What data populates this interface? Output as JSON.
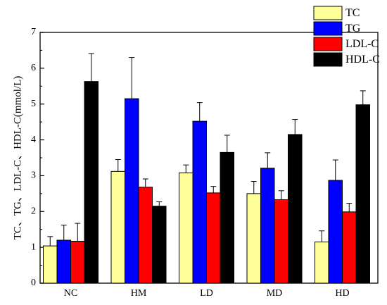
{
  "chart_data": {
    "type": "bar",
    "title": "",
    "xlabel": "",
    "ylabel": "TC、TG、LDL-C、HDL-C(mmol/L)",
    "ylim": [
      0,
      7
    ],
    "yticks": [
      0,
      1,
      2,
      3,
      4,
      5,
      6,
      7
    ],
    "grid": false,
    "legend_position": "top-right",
    "error_bars": true,
    "categories": [
      "NC",
      "HM",
      "LD",
      "MD",
      "HD"
    ],
    "series": [
      {
        "name": "TC",
        "color": "#ffff99",
        "values": [
          1.04,
          3.12,
          3.08,
          2.5,
          1.15
        ],
        "errors": [
          0.26,
          0.33,
          0.22,
          0.34,
          0.31
        ]
      },
      {
        "name": "TG",
        "color": "#0000ff",
        "values": [
          1.2,
          5.15,
          4.52,
          3.21,
          2.87
        ],
        "errors": [
          0.42,
          1.15,
          0.52,
          0.43,
          0.57
        ]
      },
      {
        "name": "LDL-C",
        "color": "#ff0000",
        "values": [
          1.17,
          2.68,
          2.52,
          2.33,
          1.99
        ],
        "errors": [
          0.5,
          0.23,
          0.18,
          0.25,
          0.24
        ]
      },
      {
        "name": "HDL-C",
        "color": "#000000",
        "values": [
          5.63,
          2.15,
          3.65,
          4.15,
          4.98
        ],
        "errors": [
          0.78,
          0.12,
          0.48,
          0.42,
          0.39
        ]
      }
    ]
  }
}
